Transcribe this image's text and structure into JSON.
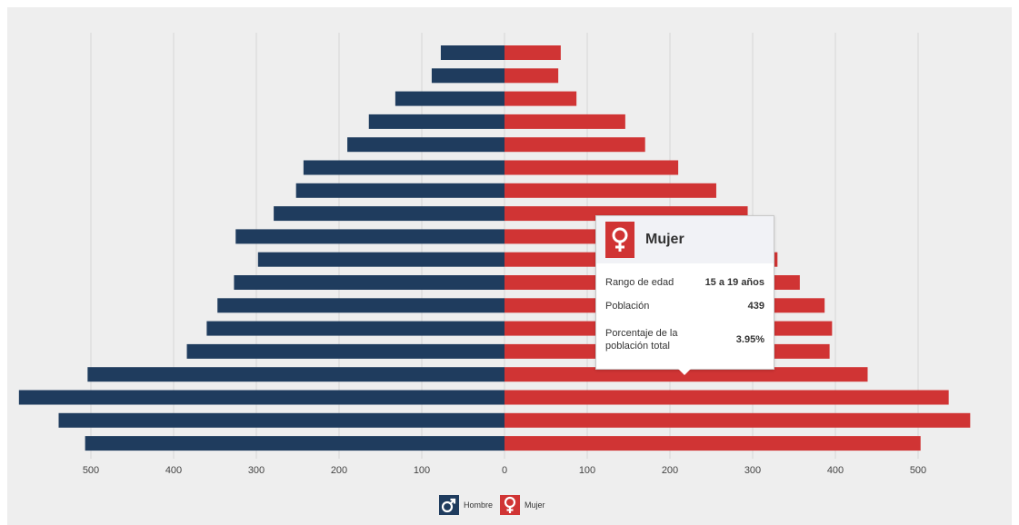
{
  "colors": {
    "male": "#1f3c5e",
    "female": "#d03434",
    "background": "#eeeeee",
    "grid": "#d6d6d6"
  },
  "chart_data": {
    "type": "bar",
    "orientation": "horizontal-population-pyramid",
    "title": "",
    "xlabel": "",
    "ylabel": "",
    "xlim": [
      -500,
      500
    ],
    "x_ticks": [
      "500",
      "400",
      "300",
      "200",
      "100",
      "0",
      "100",
      "200",
      "300",
      "400",
      "500"
    ],
    "grid": true,
    "legend_position": "bottom-center",
    "series": [
      {
        "name": "Hombre",
        "side": "left",
        "values": [
          77,
          88,
          132,
          164,
          190,
          243,
          252,
          279,
          325,
          298,
          327,
          347,
          360,
          384,
          504,
          587,
          539,
          507
        ]
      },
      {
        "name": "Mujer",
        "side": "right",
        "values": [
          68,
          65,
          87,
          146,
          170,
          210,
          256,
          294,
          310,
          330,
          357,
          387,
          396,
          393,
          439,
          537,
          563,
          503
        ]
      }
    ]
  },
  "legend": {
    "male_label": "Hombre",
    "female_label": "Mujer"
  },
  "tooltip": {
    "title": "Mujer",
    "rows": [
      {
        "label": "Rango de edad",
        "value": "15 a 19 años"
      },
      {
        "label": "Población",
        "value": "439"
      },
      {
        "label": "Porcentaje de la población total",
        "value": "3.95%"
      }
    ]
  }
}
